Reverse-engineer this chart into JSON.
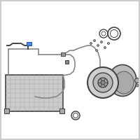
{
  "bg_color": "#ffffff",
  "line_color": "#888888",
  "dark_line": "#444444",
  "fitting_color": "#777777",
  "highlight_color": "#4a90d9",
  "condenser_fill": "#cccccc",
  "condenser_grid": "#aaaaaa",
  "compressor_fill": "#bbbbbb",
  "clutch_fill": "#cccccc"
}
